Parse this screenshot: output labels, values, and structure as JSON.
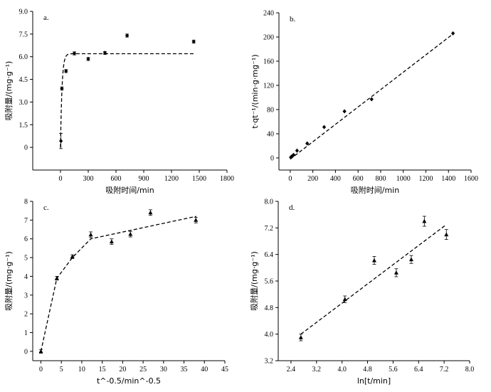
{
  "chart_data": [
    {
      "id": "a",
      "type": "scatter",
      "panel_label": "a.",
      "xlabel": "吸附时间/min",
      "ylabel": "吸附量/(mg·g⁻¹)",
      "xlim": [
        -300,
        1800
      ],
      "ylim": [
        -1.5,
        9
      ],
      "xticks": [
        0,
        300,
        600,
        900,
        1200,
        1500,
        1800
      ],
      "yticks": [
        0,
        1.5,
        3.0,
        4.5,
        6.0,
        7.5,
        9.0
      ],
      "ytick_labels": [
        "0",
        "1.5",
        "3.0",
        "4.5",
        "6.0",
        "7.5",
        "9.0"
      ],
      "marker": "diamond",
      "points": [
        {
          "x": 5,
          "y": 0.42,
          "err": 0.5
        },
        {
          "x": 15,
          "y": 3.9,
          "err": 0.1
        },
        {
          "x": 60,
          "y": 5.05,
          "err": 0.1
        },
        {
          "x": 150,
          "y": 6.22,
          "err": 0.1
        },
        {
          "x": 300,
          "y": 5.85,
          "err": 0.1
        },
        {
          "x": 480,
          "y": 6.25,
          "err": 0.1
        },
        {
          "x": 720,
          "y": 7.4,
          "err": 0.1
        },
        {
          "x": 1440,
          "y": 7.0,
          "err": 0.1
        }
      ],
      "fit": {
        "kind": "pseudo_first_order",
        "qe": 6.2,
        "k": 0.06,
        "xmax": 1440
      }
    },
    {
      "id": "b",
      "type": "scatter",
      "panel_label": "b.",
      "xlabel": "吸附时间/min",
      "ylabel": "t·qt⁻¹/(min·g·mg⁻¹)",
      "xlim": [
        -100,
        1600
      ],
      "ylim": [
        -20,
        240
      ],
      "xticks": [
        0,
        200,
        400,
        600,
        800,
        1000,
        1200,
        1400,
        1600
      ],
      "yticks": [
        0,
        40,
        80,
        120,
        160,
        200,
        240
      ],
      "ytick_labels": [
        "0",
        "40",
        "80",
        "120",
        "160",
        "200",
        "240"
      ],
      "marker": "diamond",
      "points": [
        {
          "x": 5,
          "y": 1
        },
        {
          "x": 15,
          "y": 3
        },
        {
          "x": 30,
          "y": 5
        },
        {
          "x": 60,
          "y": 12
        },
        {
          "x": 150,
          "y": 24
        },
        {
          "x": 300,
          "y": 51
        },
        {
          "x": 480,
          "y": 77
        },
        {
          "x": 720,
          "y": 97
        },
        {
          "x": 1440,
          "y": 206
        }
      ],
      "fit": {
        "kind": "linear",
        "x0": 0,
        "y0": -2,
        "x1": 1440,
        "y1": 205
      }
    },
    {
      "id": "c",
      "type": "scatter",
      "panel_label": "c.",
      "xlabel": "t^-0.5/min^-0.5",
      "ylabel": "吸附量/(mg·g⁻¹)",
      "xlim": [
        -2,
        45
      ],
      "ylim": [
        -0.5,
        8
      ],
      "xticks": [
        0,
        5,
        10,
        15,
        20,
        25,
        30,
        35,
        40,
        45
      ],
      "yticks": [
        0,
        1,
        2,
        3,
        4,
        5,
        6,
        7,
        8
      ],
      "ytick_labels": [
        "0",
        "1",
        "2",
        "3",
        "4",
        "5",
        "6",
        "7",
        "8"
      ],
      "marker": "triangle",
      "points": [
        {
          "x": 0,
          "y": 0.0,
          "err": 0.1
        },
        {
          "x": 3.9,
          "y": 3.9,
          "err": 0.1
        },
        {
          "x": 7.7,
          "y": 5.05,
          "err": 0.1
        },
        {
          "x": 12.2,
          "y": 6.22,
          "err": 0.15
        },
        {
          "x": 17.3,
          "y": 5.85,
          "err": 0.15
        },
        {
          "x": 21.9,
          "y": 6.25,
          "err": 0.15
        },
        {
          "x": 26.8,
          "y": 7.4,
          "err": 0.15
        },
        {
          "x": 37.9,
          "y": 7.0,
          "err": 0.15
        }
      ],
      "fit": {
        "kind": "polyline",
        "x": [
          0,
          3.9,
          7.7,
          12.2,
          38
        ],
        "y": [
          0,
          3.9,
          5.0,
          6.0,
          7.2
        ]
      }
    },
    {
      "id": "d",
      "type": "scatter",
      "panel_label": "d.",
      "xlabel": "ln[t/min]",
      "ylabel": "吸附量/(mg·g⁻¹)",
      "xlim": [
        2.0,
        8.0
      ],
      "ylim": [
        3.2,
        8.0
      ],
      "xticks": [
        2.4,
        3.2,
        4.0,
        4.8,
        5.6,
        6.4,
        7.2,
        8.0
      ],
      "yticks": [
        3.2,
        4.0,
        4.8,
        5.6,
        6.4,
        7.2,
        8.0
      ],
      "ytick_labels": [
        "3.2",
        "4.0",
        "4.8",
        "5.6",
        "6.4",
        "7.2",
        "8.0"
      ],
      "xtick_labels": [
        "2.4",
        "3.2",
        "4.0",
        "4.8",
        "5.6",
        "6.4",
        "7.2",
        "8.0"
      ],
      "marker": "triangle",
      "points": [
        {
          "x": 2.71,
          "y": 3.9,
          "err": 0.1
        },
        {
          "x": 4.09,
          "y": 5.05,
          "err": 0.1
        },
        {
          "x": 5.01,
          "y": 6.22,
          "err": 0.12
        },
        {
          "x": 5.7,
          "y": 5.85,
          "err": 0.12
        },
        {
          "x": 6.17,
          "y": 6.25,
          "err": 0.12
        },
        {
          "x": 6.58,
          "y": 7.4,
          "err": 0.15
        },
        {
          "x": 7.27,
          "y": 7.0,
          "err": 0.15
        }
      ],
      "fit": {
        "kind": "linear",
        "x0": 2.71,
        "y0": 4.0,
        "x1": 7.27,
        "y1": 7.3
      }
    }
  ]
}
